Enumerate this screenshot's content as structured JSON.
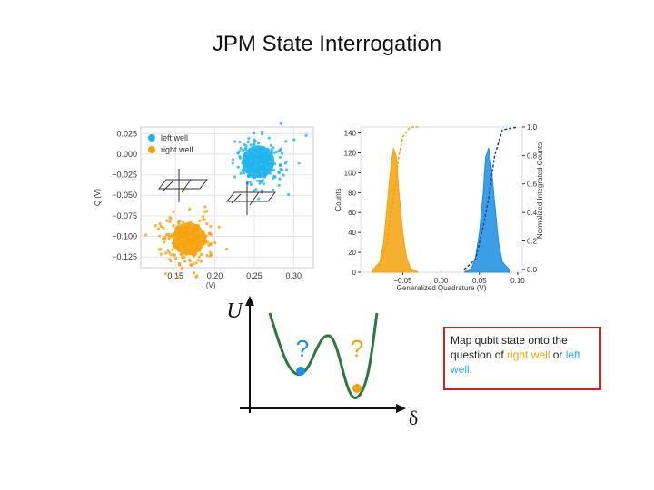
{
  "title": "JPM State Interrogation",
  "scatter": {
    "type": "scatter",
    "xlabel": "I (V)",
    "ylabel": "Q (V)",
    "xlim": [
      0.106,
      0.325
    ],
    "ylim": [
      -0.138,
      0.033
    ],
    "xticks": [
      0.15,
      {
        "value": 0.2,
        "label": "0.20"
      },
      0.25,
      {
        "value": 0.3,
        "label": "0.30"
      }
    ],
    "yticks": [
      {
        "value": 0.025,
        "label": "0.025"
      },
      {
        "value": 0,
        "label": "0.000"
      },
      {
        "value": -0.025,
        "label": "−0.025"
      },
      {
        "value": -0.05,
        "label": "−0.050"
      },
      {
        "value": -0.075,
        "label": "−0.075"
      },
      {
        "value": -0.1,
        "label": "−0.100"
      },
      {
        "value": -0.125,
        "label": "−0.125"
      }
    ],
    "grid": true,
    "series": [
      {
        "name": "left well",
        "color": "#1eb4ec",
        "x": [
          0.255
        ],
        "y": [
          -0.009
        ]
      },
      {
        "name": "right well",
        "color": "#f5a20a",
        "x": [
          0.167
        ],
        "y": [
          -0.103
        ]
      }
    ]
  },
  "histogram": {
    "type": "area",
    "xlabel": "Generalized Quadrature (V)",
    "ylabel": "Counts",
    "y2label": "Normalized Integrated Counts",
    "xlim": [
      -0.105,
      0.106
    ],
    "ylim": [
      0,
      146
    ],
    "y2lim": [
      -0.02,
      1.0
    ],
    "xticks": [
      {
        "value": -0.05,
        "label": "−0.05"
      },
      {
        "value": 0,
        "label": "0.00"
      },
      0.05,
      {
        "value": 0.1,
        "label": "0.10"
      }
    ],
    "yticks": [
      0,
      20,
      40,
      60,
      80,
      100,
      120,
      140
    ],
    "y2ticks": [
      {
        "value": 0,
        "label": "0.0"
      },
      0.2,
      0.4,
      0.6,
      0.8,
      {
        "value": 1,
        "label": "1.0"
      }
    ],
    "series": [
      {
        "color": "#f5a20a",
        "x": [
          -0.09,
          -0.08,
          -0.075,
          -0.07,
          -0.065,
          -0.062,
          -0.058,
          -0.055,
          -0.05,
          -0.045,
          -0.04,
          -0.03
        ],
        "values": [
          2,
          10,
          30,
          70,
          110,
          125,
          115,
          80,
          40,
          15,
          4,
          0
        ]
      },
      {
        "color": "#1a8ee0",
        "x": [
          0.03,
          0.04,
          0.045,
          0.05,
          0.055,
          0.058,
          0.062,
          0.065,
          0.07,
          0.075,
          0.08,
          0.09
        ],
        "values": [
          0,
          4,
          15,
          40,
          80,
          115,
          125,
          110,
          70,
          30,
          10,
          2
        ]
      },
      {
        "color": "#f5a20a",
        "axis": "y2",
        "style": "dashed",
        "x": [
          -0.08,
          -0.07,
          -0.062,
          -0.055,
          -0.05,
          -0.04,
          -0.03
        ],
        "values": [
          0.02,
          0.2,
          0.5,
          0.8,
          0.93,
          1.0,
          1.0
        ]
      },
      {
        "color": "#1a3fa8",
        "axis": "y2",
        "style": "dashed",
        "x": [
          0.03,
          0.045,
          0.055,
          0.062,
          0.07,
          0.08,
          0.1
        ],
        "values": [
          0,
          0.07,
          0.3,
          0.5,
          0.8,
          0.98,
          1.0
        ]
      }
    ]
  },
  "diagram": {
    "y_label": "U",
    "x_label": "δ",
    "left_mark": "?",
    "right_mark": "?"
  },
  "note": {
    "parts": [
      "Map qubit state onto the question of ",
      "right well",
      " or ",
      "left well",
      "."
    ]
  }
}
